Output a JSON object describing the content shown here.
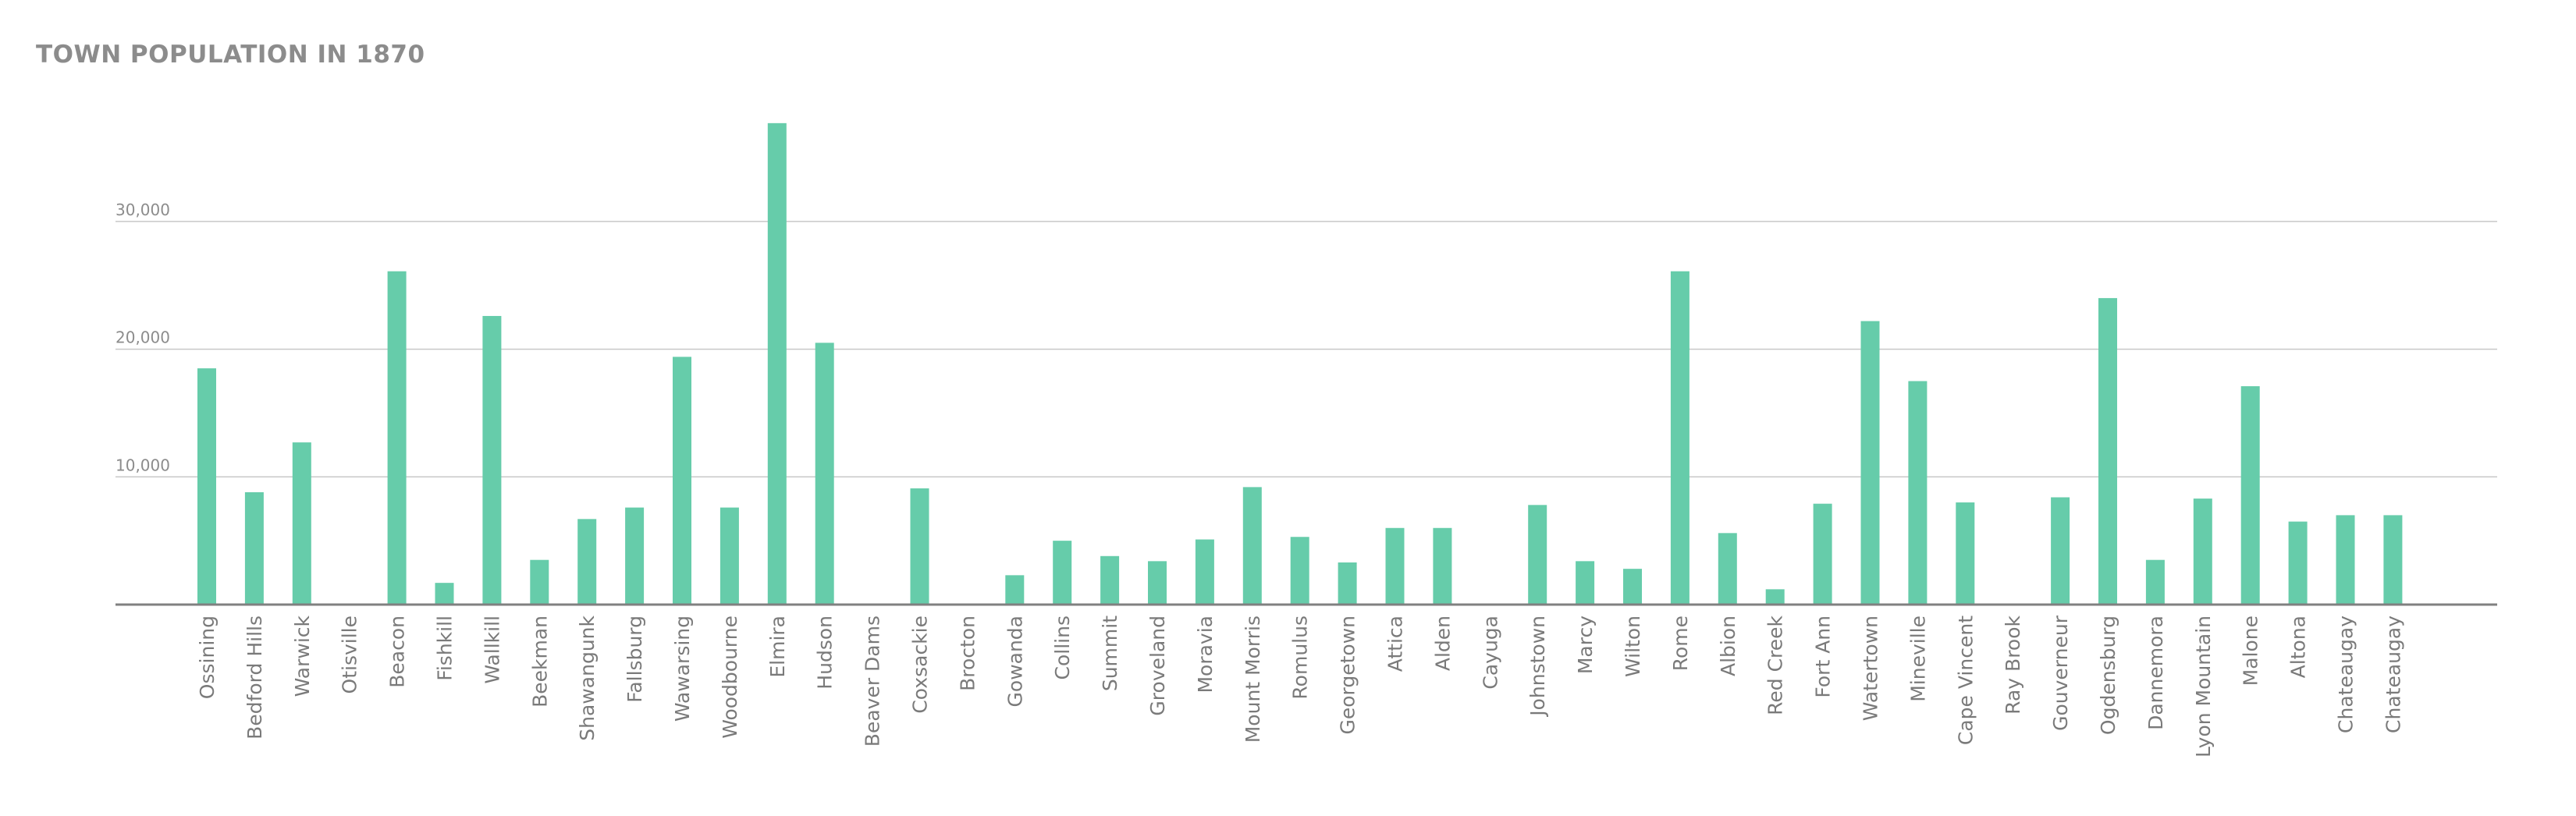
{
  "chart_data": {
    "type": "bar",
    "title": "TOWN POPULATION IN 1870",
    "xlabel": "",
    "ylabel": "",
    "ylim": [
      0,
      38000
    ],
    "yticks": [
      10000,
      20000,
      30000
    ],
    "ytick_labels": [
      "10,000",
      "20,000",
      "30,000"
    ],
    "grid": true,
    "bar_color": "#66ccaa",
    "categories": [
      "Ossining",
      "Bedford Hills",
      "Warwick",
      "Otisville",
      "Beacon",
      "Fishkill",
      "Wallkill",
      "Beekman",
      "Shawangunk",
      "Fallsburg",
      "Wawarsing",
      "Woodbourne",
      "Elmira",
      "Hudson",
      "Beaver Dams",
      "Coxsackie",
      "Brocton",
      "Gowanda",
      "Collins",
      "Summit",
      "Groveland",
      "Moravia",
      "Mount Morris",
      "Romulus",
      "Georgetown",
      "Attica",
      "Alden",
      "Cayuga",
      "Johnstown",
      "Marcy",
      "Wilton",
      "Rome",
      "Albion",
      "Red Creek",
      "Fort Ann",
      "Watertown",
      "Mineville",
      "Cape Vincent",
      "Ray Brook",
      "Gouverneur",
      "Ogdensburg",
      "Dannemora",
      "Lyon Mountain",
      "Malone",
      "Altona",
      "Chateaugay",
      "Chateaugay"
    ],
    "values": [
      18500,
      8800,
      12700,
      0,
      26100,
      1700,
      22600,
      3500,
      6700,
      7600,
      19400,
      7600,
      37700,
      20500,
      0,
      9100,
      0,
      2300,
      5000,
      3800,
      3400,
      5100,
      9200,
      5300,
      3300,
      6000,
      6000,
      0,
      7800,
      3400,
      2800,
      26100,
      5600,
      1200,
      7900,
      22200,
      17500,
      8000,
      0,
      8400,
      24000,
      3500,
      8300,
      17100,
      6500,
      7000,
      7000
    ]
  }
}
